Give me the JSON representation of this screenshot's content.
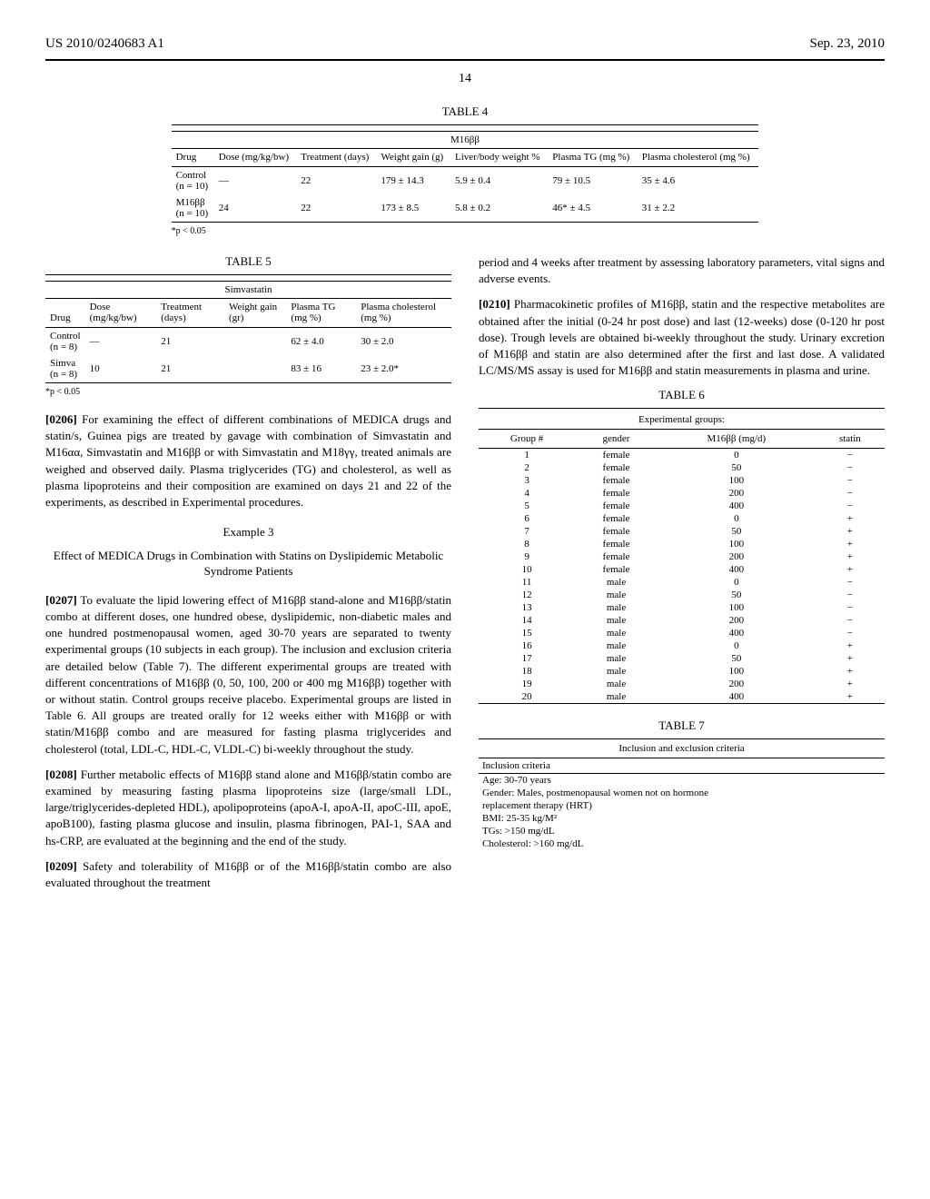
{
  "header": {
    "left": "US 2010/0240683 A1",
    "right": "Sep. 23, 2010"
  },
  "pageNum": "14",
  "table4": {
    "caption": "TABLE 4",
    "subtitle": "M16ββ",
    "columns": [
      "Drug",
      "Dose (mg/kg/bw)",
      "Treatment (days)",
      "Weight gain (g)",
      "Liver/body weight %",
      "Plasma TG (mg %)",
      "Plasma cholesterol (mg %)"
    ],
    "rows": [
      [
        "Control\n(n = 10)",
        "—",
        "22",
        "179 ± 14.3",
        "5.9 ± 0.4",
        "79 ± 10.5",
        "35 ± 4.6"
      ],
      [
        "M16ββ\n(n = 10)",
        "24",
        "22",
        "173 ± 8.5",
        "5.8 ± 0.2",
        "46* ± 4.5",
        "31 ± 2.2"
      ]
    ],
    "footnote": "*p < 0.05"
  },
  "table5": {
    "caption": "TABLE 5",
    "subtitle": "Simvastatin",
    "columns": [
      "Drug",
      "Dose (mg/kg/bw)",
      "Treatment (days)",
      "Weight gain (gr)",
      "Plasma TG (mg %)",
      "Plasma cholesterol (mg %)"
    ],
    "rows": [
      [
        "Control\n(n = 8)",
        "—",
        "21",
        "",
        "62 ± 4.0",
        "30 ± 2.0"
      ],
      [
        "Simva\n(n = 8)",
        "10",
        "21",
        "",
        "83 ± 16",
        "23 ± 2.0*"
      ]
    ],
    "footnote": "*p < 0.05"
  },
  "para0206": {
    "num": "[0206]",
    "text": "For examining the effect of different combinations of MEDICA drugs and statin/s, Guinea pigs are treated by gavage with combination of Simvastatin and M16αα, Simvastatin and M16ββ or with Simvastatin and M18γγ, treated animals are weighed and observed daily. Plasma triglycerides (TG) and cholesterol, as well as plasma lipoproteins and their composition are examined on days 21 and 22 of the experiments, as described in Experimental procedures."
  },
  "example3": {
    "title": "Example 3",
    "subtitle": "Effect of MEDICA Drugs in Combination with Statins on Dyslipidemic Metabolic Syndrome Patients"
  },
  "para0207": {
    "num": "[0207]",
    "text": "To evaluate the lipid lowering effect of M16ββ stand-alone and M16ββ/statin combo at different doses, one hundred obese, dyslipidemic, non-diabetic males and one hundred postmenopausal women, aged 30-70 years are separated to twenty experimental groups (10 subjects in each group). The inclusion and exclusion criteria are detailed below (Table 7). The different experimental groups are treated with different concentrations of M16ββ (0, 50, 100, 200 or 400 mg M16ββ) together with or without statin. Control groups receive placebo. Experimental groups are listed in Table 6. All groups are treated orally for 12 weeks either with M16ββ or with statin/M16ββ combo and are measured for fasting plasma triglycerides and cholesterol (total, LDL-C, HDL-C, VLDL-C) bi-weekly throughout the study."
  },
  "para0208": {
    "num": "[0208]",
    "text": "Further metabolic effects of M16ββ stand alone and M16ββ/statin combo are examined by measuring fasting plasma lipoproteins size (large/small LDL, large/triglycerides-depleted HDL), apolipoproteins (apoA-I, apoA-II, apoC-III, apoE, apoB100), fasting plasma glucose and insulin, plasma fibrinogen, PAI-1, SAA and hs-CRP, are evaluated at the beginning and the end of the study."
  },
  "para0209": {
    "num": "[0209]",
    "text": "Safety and tolerability of M16ββ or of the M16ββ/statin combo are also evaluated throughout the treatment"
  },
  "rightTop": {
    "text": "period and 4 weeks after treatment by assessing laboratory parameters, vital signs and adverse events."
  },
  "para0210": {
    "num": "[0210]",
    "text": "Pharmacokinetic profiles of M16ββ, statin and the respective metabolites are obtained after the initial (0-24 hr post dose) and last (12-weeks) dose (0-120 hr post dose). Trough levels are obtained bi-weekly throughout the study. Urinary excretion of M16ββ and statin are also determined after the first and last dose. A validated LC/MS/MS assay is used for M16ββ and statin measurements in plasma and urine."
  },
  "table6": {
    "caption": "TABLE 6",
    "subtitle": "Experimental groups:",
    "columns": [
      "Group #",
      "gender",
      "M16ββ (mg/d)",
      "statin"
    ],
    "rows": [
      [
        "1",
        "female",
        "0",
        "−"
      ],
      [
        "2",
        "female",
        "50",
        "−"
      ],
      [
        "3",
        "female",
        "100",
        "−"
      ],
      [
        "4",
        "female",
        "200",
        "−"
      ],
      [
        "5",
        "female",
        "400",
        "−"
      ],
      [
        "6",
        "female",
        "0",
        "+"
      ],
      [
        "7",
        "female",
        "50",
        "+"
      ],
      [
        "8",
        "female",
        "100",
        "+"
      ],
      [
        "9",
        "female",
        "200",
        "+"
      ],
      [
        "10",
        "female",
        "400",
        "+"
      ],
      [
        "11",
        "male",
        "0",
        "−"
      ],
      [
        "12",
        "male",
        "50",
        "−"
      ],
      [
        "13",
        "male",
        "100",
        "−"
      ],
      [
        "14",
        "male",
        "200",
        "−"
      ],
      [
        "15",
        "male",
        "400",
        "−"
      ],
      [
        "16",
        "male",
        "0",
        "+"
      ],
      [
        "17",
        "male",
        "50",
        "+"
      ],
      [
        "18",
        "male",
        "100",
        "+"
      ],
      [
        "19",
        "male",
        "200",
        "+"
      ],
      [
        "20",
        "male",
        "400",
        "+"
      ]
    ]
  },
  "table7": {
    "caption": "TABLE 7",
    "subtitle": "Inclusion and exclusion criteria",
    "section": "Inclusion criteria",
    "lines": [
      "Age: 30-70 years",
      "Gender: Males, postmenopausal women not on hormone",
      "replacement therapy (HRT)",
      "BMI: 25-35 kg/M²",
      "TGs: >150 mg/dL",
      "Cholesterol: >160 mg/dL"
    ]
  }
}
